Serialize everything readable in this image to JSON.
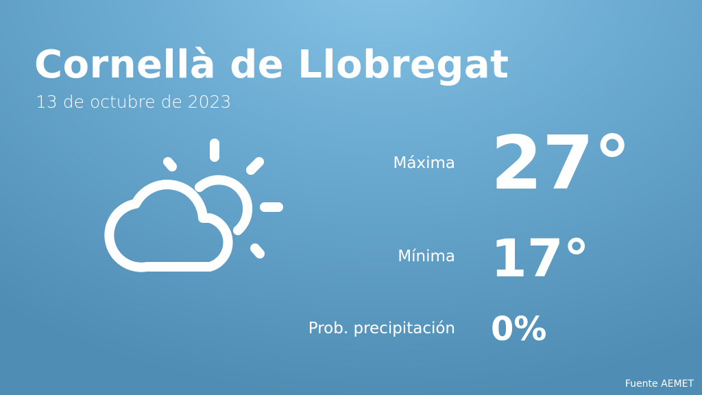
{
  "city": "Cornellà de Llobregat",
  "date": "13 de octubre de 2023",
  "weather_icon": "partly-cloudy-icon",
  "max": {
    "label": "Máxima",
    "value": "27°"
  },
  "min": {
    "label": "Mínima",
    "value": "17°"
  },
  "precip": {
    "label": "Prob. precipitación",
    "value": "0%"
  },
  "source": "Fuente AEMET"
}
